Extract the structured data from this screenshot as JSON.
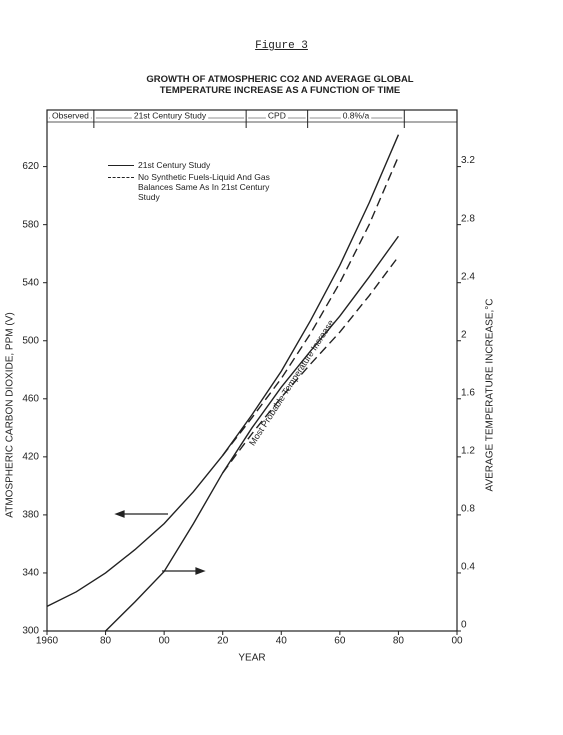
{
  "chart_data": {
    "type": "line",
    "figure_label": "Figure 3",
    "title": "GROWTH OF ATMOSPHERIC CO2 AND AVERAGE GLOBAL\nTEMPERATURE INCREASE AS A FUNCTION OF TIME",
    "x_label": "YEAR",
    "y_label": "ATMOSPHERIC CARBON DIOXIDE, PPM (V)",
    "y2_label": "AVERAGE TEMPERATURE INCREASE,°C",
    "annotation": "Most Probable Temperature Increase",
    "periods": [
      {
        "label": "Observed",
        "start": 1960,
        "end": 1976
      },
      {
        "label": "21st Century Study",
        "start": 1976,
        "end": 2028
      },
      {
        "label": "CPD",
        "start": 2028,
        "end": 2049
      },
      {
        "label": "0.8%/a",
        "start": 2049,
        "end": 2082
      }
    ],
    "x": [
      1960,
      1970,
      1980,
      1990,
      2000,
      2010,
      2020,
      2030,
      2040,
      2050,
      2060,
      2070,
      2080
    ],
    "xlim": [
      1960,
      2100
    ],
    "xticks": [
      {
        "value": 1960,
        "label": "1960"
      },
      {
        "value": 1980,
        "label": "80"
      },
      {
        "value": 2000,
        "label": "00"
      },
      {
        "value": 2020,
        "label": "20"
      },
      {
        "value": 2040,
        "label": "40"
      },
      {
        "value": 2060,
        "label": "60"
      },
      {
        "value": 2080,
        "label": "80"
      },
      {
        "value": 2100,
        "label": "00"
      }
    ],
    "ylim": [
      300,
      659
    ],
    "yticks": [
      300,
      340,
      380,
      420,
      460,
      500,
      540,
      580,
      620
    ],
    "y2lim": [
      0,
      3.59
    ],
    "y2ticks": [
      0,
      0.4,
      0.8,
      1.2,
      1.6,
      2.0,
      2.4,
      2.8,
      3.2
    ],
    "grid": false,
    "series": [
      {
        "name": "21st Century Study",
        "color": "#222222",
        "style": "solid",
        "values": [
          317,
          327,
          340,
          356,
          374,
          396,
          421,
          449,
          479,
          514,
          552,
          595,
          642
        ]
      },
      {
        "name": "No Synthetic Fuels-Liquid And Gas Balances Same As In 21st Century Study",
        "color": "#222222",
        "style": "dashed",
        "values": [
          null,
          null,
          null,
          null,
          null,
          null,
          421,
          447,
          474,
          505,
          540,
          580,
          627
        ]
      },
      {
        "axis": "y2",
        "color": "#222222",
        "style": "solid",
        "values": [
          null,
          null,
          0,
          0.2,
          0.41,
          0.74,
          1.09,
          1.4,
          1.68,
          1.93,
          2.17,
          2.44,
          2.72
        ]
      },
      {
        "axis": "y2",
        "color": "#222222",
        "style": "dashed",
        "values": [
          null,
          null,
          null,
          null,
          null,
          null,
          1.09,
          1.36,
          1.61,
          1.84,
          2.06,
          2.31,
          2.58
        ]
      }
    ]
  }
}
